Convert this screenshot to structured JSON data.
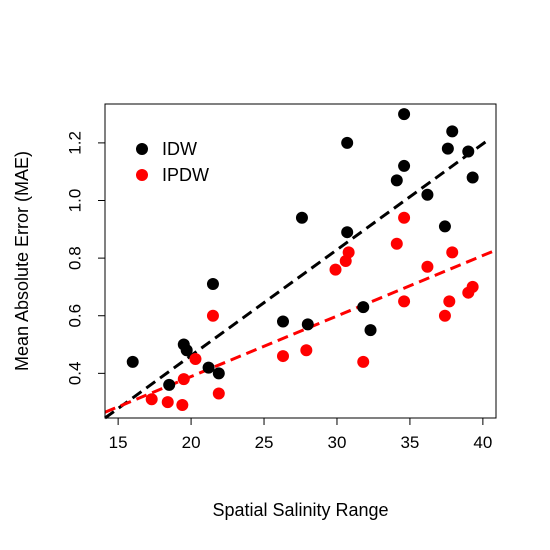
{
  "chart_data": {
    "type": "scatter",
    "xlabel": "Spatial Salinity Range",
    "ylabel": "Mean Absolute Error (MAE)",
    "xlim": [
      14.1,
      40.9
    ],
    "ylim": [
      0.245,
      1.335
    ],
    "xticks": [
      15,
      20,
      25,
      30,
      35,
      40
    ],
    "yticks": [
      0.4,
      0.6,
      0.8,
      1.0,
      1.2
    ],
    "ytick_labels": [
      "0.4",
      "0.6",
      "0.8",
      "1.0",
      "1.2"
    ],
    "grid": false,
    "legend_position": "top-left",
    "series": [
      {
        "name": "IDW",
        "color": "#000000",
        "points": [
          [
            16.0,
            0.44
          ],
          [
            18.5,
            0.36
          ],
          [
            19.5,
            0.5
          ],
          [
            19.7,
            0.48
          ],
          [
            21.2,
            0.42
          ],
          [
            21.5,
            0.71
          ],
          [
            21.9,
            0.4
          ],
          [
            26.3,
            0.58
          ],
          [
            27.6,
            0.94
          ],
          [
            28.0,
            0.57
          ],
          [
            30.7,
            1.2
          ],
          [
            30.7,
            0.89
          ],
          [
            31.8,
            0.63
          ],
          [
            32.3,
            0.55
          ],
          [
            34.1,
            1.07
          ],
          [
            34.6,
            1.3
          ],
          [
            34.6,
            1.12
          ],
          [
            36.2,
            1.02
          ],
          [
            37.4,
            0.91
          ],
          [
            37.6,
            1.18
          ],
          [
            37.9,
            1.24
          ],
          [
            39.0,
            1.17
          ],
          [
            39.3,
            1.08
          ]
        ],
        "trend": [
          [
            14.1,
            0.245
          ],
          [
            40.5,
            1.215
          ]
        ]
      },
      {
        "name": "IPDW",
        "color": "#ff0000",
        "points": [
          [
            17.3,
            0.31
          ],
          [
            18.4,
            0.3
          ],
          [
            19.4,
            0.29
          ],
          [
            19.5,
            0.38
          ],
          [
            20.3,
            0.45
          ],
          [
            21.5,
            0.6
          ],
          [
            21.9,
            0.33
          ],
          [
            26.3,
            0.46
          ],
          [
            27.9,
            0.48
          ],
          [
            29.9,
            0.76
          ],
          [
            30.6,
            0.79
          ],
          [
            30.8,
            0.82
          ],
          [
            31.8,
            0.44
          ],
          [
            34.1,
            0.85
          ],
          [
            34.6,
            0.94
          ],
          [
            34.6,
            0.65
          ],
          [
            36.2,
            0.77
          ],
          [
            37.4,
            0.6
          ],
          [
            37.7,
            0.65
          ],
          [
            37.9,
            0.82
          ],
          [
            39.0,
            0.68
          ],
          [
            39.3,
            0.7
          ]
        ],
        "trend": [
          [
            14.1,
            0.265
          ],
          [
            40.9,
            0.828
          ]
        ]
      }
    ]
  }
}
